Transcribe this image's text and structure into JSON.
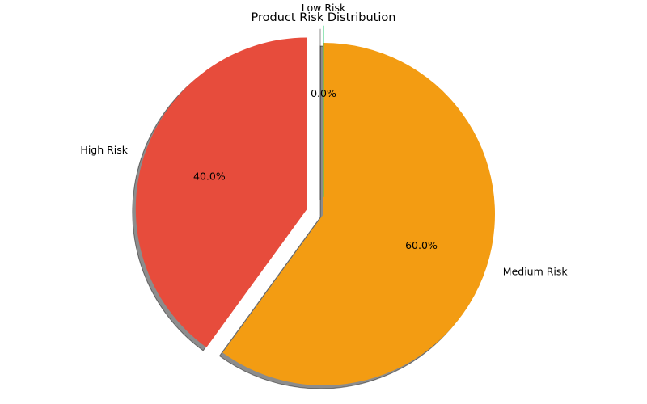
{
  "chart_data": {
    "type": "pie",
    "title": "Product Risk Distribution",
    "categories": [
      "High Risk",
      "Medium Risk",
      "Low Risk"
    ],
    "values": [
      40.0,
      60.0,
      0.0
    ],
    "percent_labels": [
      "40.0%",
      "60.0%",
      "0.0%"
    ],
    "colors": [
      "#e74c3c",
      "#f39c12",
      "#2ecc71"
    ],
    "exploded": [
      true,
      false,
      true
    ],
    "shadow": true,
    "start_angle_deg": 90,
    "direction": "counterclockwise",
    "legend": false,
    "grid": false
  }
}
